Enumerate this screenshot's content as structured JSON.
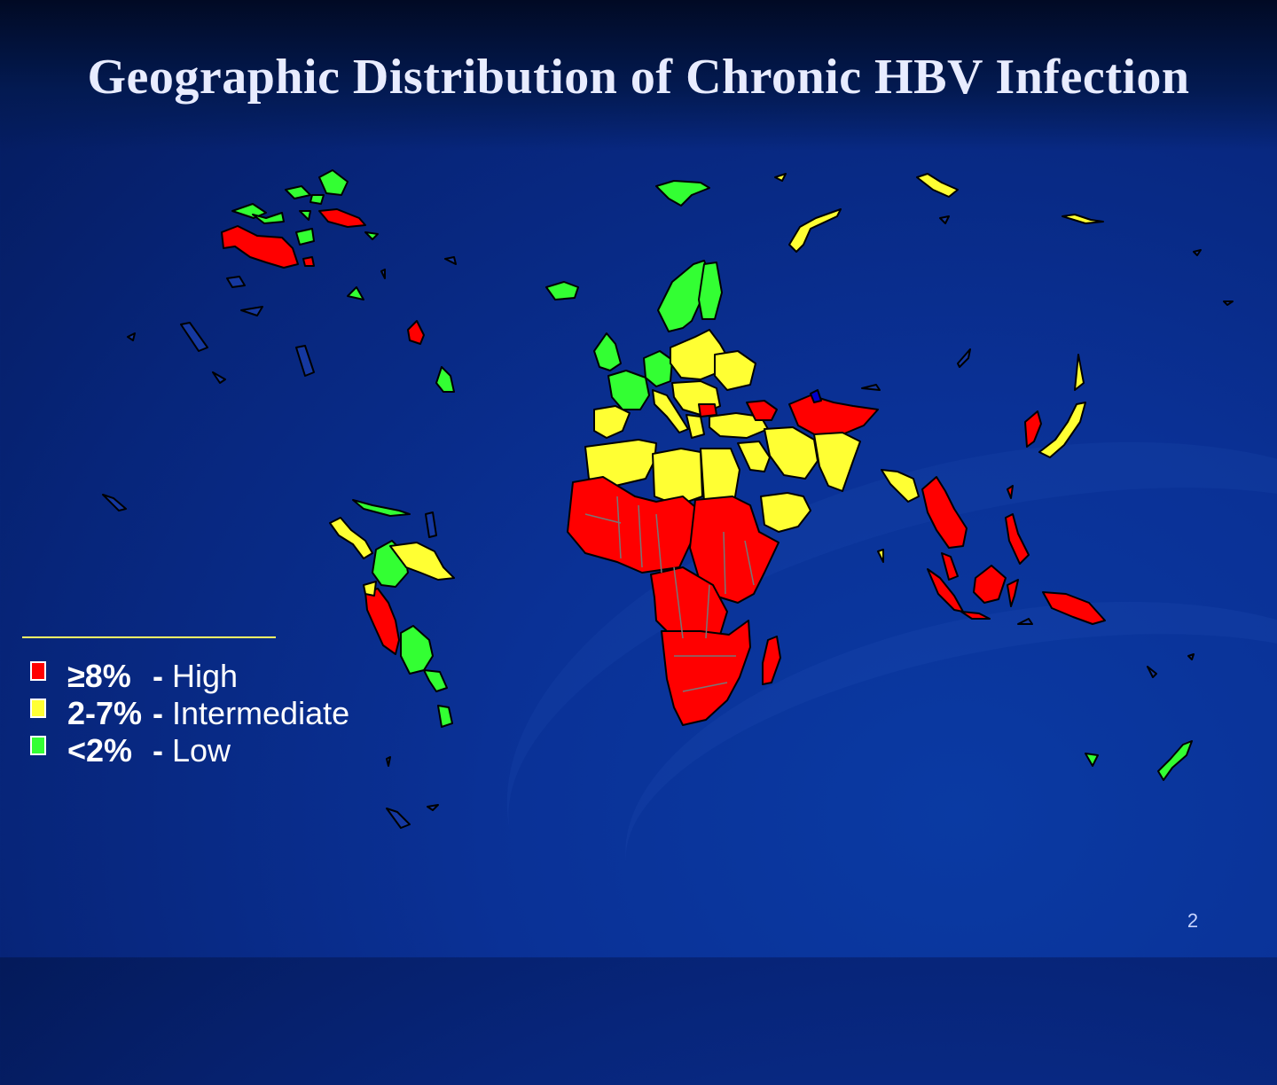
{
  "slide": {
    "title": "Geographic Distribution of Chronic HBV Infection",
    "page_number": "2"
  },
  "legend": {
    "items": [
      {
        "range": "≥8%",
        "dash": "-",
        "label": "High",
        "color": "#ff0000"
      },
      {
        "range": "2-7%",
        "dash": "-",
        "label": "Intermediate",
        "color": "#ffff33"
      },
      {
        "range": "<2%",
        "dash": "-",
        "label": "Low",
        "color": "#33ff33"
      }
    ]
  },
  "colors": {
    "high": "#ff0000",
    "intermediate": "#ffff33",
    "low": "#33ff33",
    "border": "#000000"
  }
}
